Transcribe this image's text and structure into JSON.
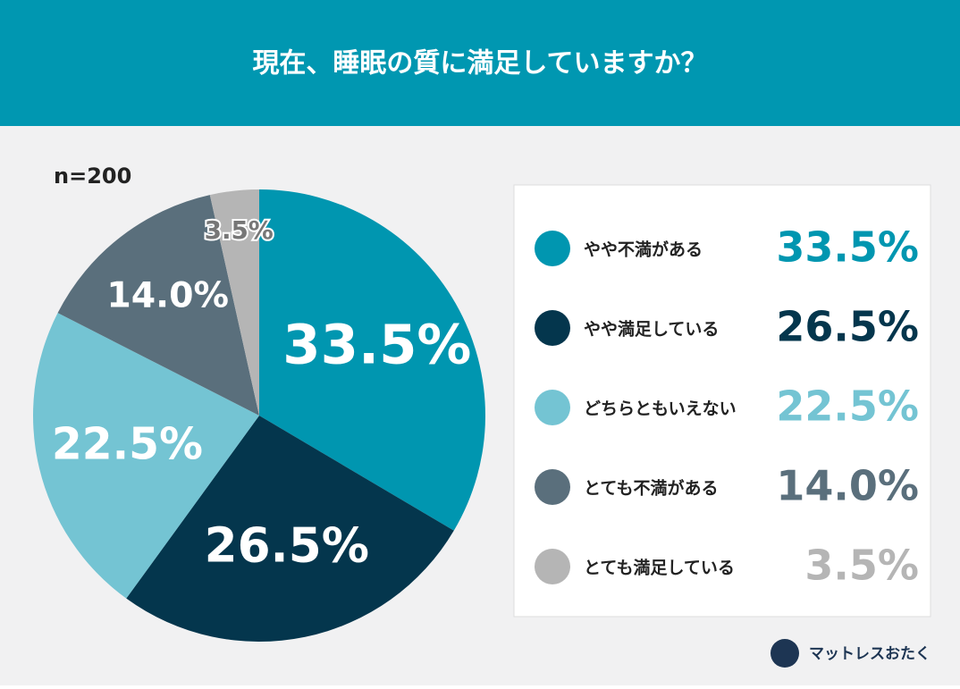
{
  "chart_data": {
    "type": "pie",
    "title": "現在、睡眠の質に満足していますか？",
    "subtitle": "n=200",
    "categories": [
      "やや不満がある",
      "やや満足している",
      "どちらともいえない",
      "とても不満がある",
      "とても満足している"
    ],
    "values": [
      33.5,
      26.5,
      22.5,
      14.0,
      3.5
    ],
    "value_labels": [
      "33.5%",
      "26.5%",
      "22.5%",
      "14.0%",
      "3.5%"
    ],
    "colors": [
      "#0096b0",
      "#04364d",
      "#74c4d3",
      "#5a6f7c",
      "#b5b5b5"
    ],
    "brand": "マットレスおたく"
  }
}
